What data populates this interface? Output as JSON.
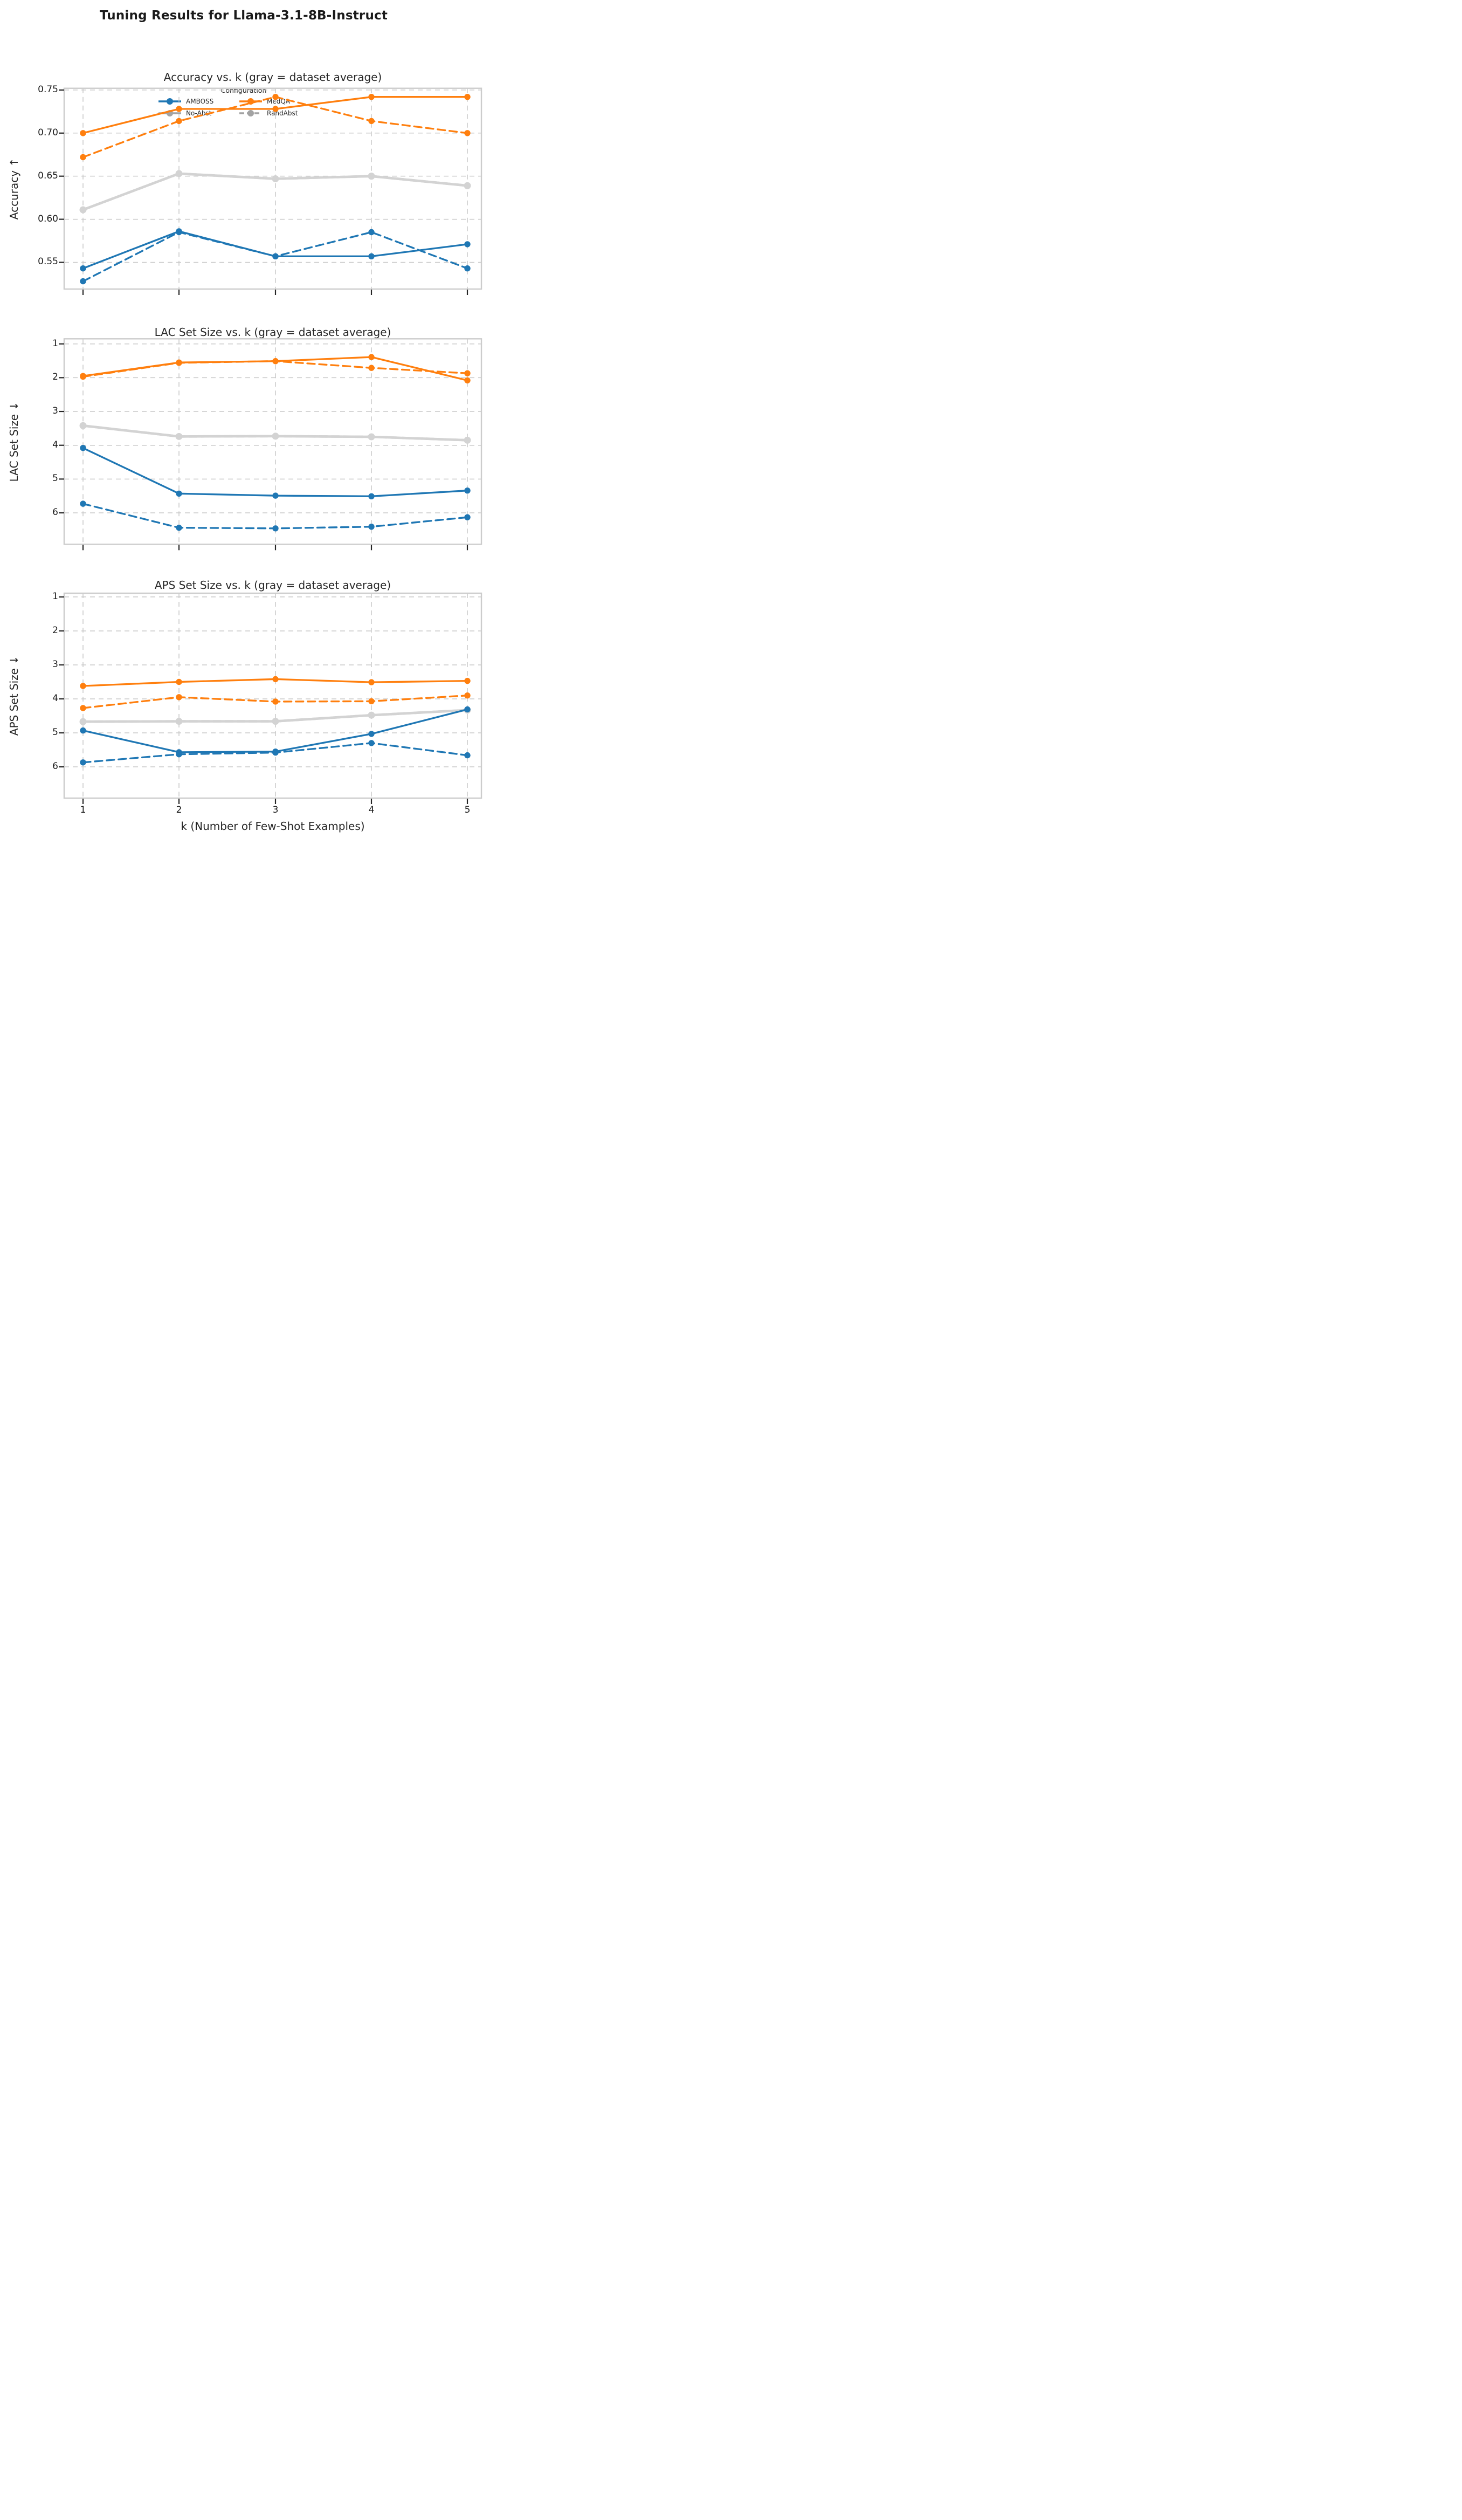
{
  "figure": {
    "title": "Tuning Results for Llama-3.1-8B-Instruct"
  },
  "legend": {
    "title": "Configuration",
    "items": [
      {
        "label": "AMBOSS",
        "color": "amboss",
        "dash": false
      },
      {
        "label": "MedQA",
        "color": "medqa",
        "dash": false
      },
      {
        "label": "No-Abst",
        "color": "legend_gray",
        "dash": false
      },
      {
        "label": "RandAbst",
        "color": "legend_gray",
        "dash": true
      }
    ]
  },
  "colors": {
    "amboss": "#1f77b4",
    "medqa": "#ff7f0e",
    "average": "#d3d3d3",
    "legend_gray": "#a3a3a3",
    "grid": "#c9c9c9",
    "spine": "#cccccc",
    "tick": "#262626"
  },
  "x_axis": {
    "label": "k (Number of Few-Shot Examples)",
    "ticks": [
      "1",
      "2",
      "3",
      "4",
      "5"
    ]
  },
  "chart_data": [
    {
      "type": "line",
      "title": "Accuracy vs. k (gray = dataset average)",
      "ylabel": "Accuracy ↑",
      "x": [
        1,
        2,
        3,
        4,
        5
      ],
      "yticks": [
        0.75,
        0.7,
        0.65,
        0.6,
        0.55
      ],
      "ytick_labels": [
        "0.75",
        "0.70",
        "0.65",
        "0.60",
        "0.55"
      ],
      "ylim": [
        0.752,
        0.519
      ],
      "grid": true,
      "series": [
        {
          "name": "No-Abst (dataset average)",
          "color": "average",
          "style": "solid",
          "values": [
            0.611,
            0.653,
            0.647,
            0.65,
            0.639
          ]
        },
        {
          "name": "RandAbst (dataset average)",
          "color": "average",
          "style": "dashed",
          "values": [
            0.611,
            0.653,
            0.647,
            0.65,
            0.639
          ]
        },
        {
          "name": "AMBOSS No-Abst",
          "color": "amboss",
          "style": "solid",
          "values": [
            0.543,
            0.586,
            0.557,
            0.557,
            0.571
          ]
        },
        {
          "name": "AMBOSS RandAbst",
          "color": "amboss",
          "style": "dashed",
          "values": [
            0.528,
            0.585,
            0.557,
            0.585,
            0.543
          ]
        },
        {
          "name": "MedQA No-Abst",
          "color": "medqa",
          "style": "solid",
          "values": [
            0.7,
            0.728,
            0.728,
            0.742,
            0.742
          ]
        },
        {
          "name": "MedQA RandAbst",
          "color": "medqa",
          "style": "dashed",
          "values": [
            0.672,
            0.714,
            0.742,
            0.714,
            0.7
          ]
        }
      ]
    },
    {
      "type": "line",
      "title": "LAC Set Size vs. k (gray = dataset average)",
      "ylabel": "LAC Set Size ↓",
      "x": [
        1,
        2,
        3,
        4,
        5
      ],
      "yticks": [
        1,
        2,
        3,
        4,
        5,
        6
      ],
      "ytick_labels": [
        "1",
        "2",
        "3",
        "4",
        "5",
        "6"
      ],
      "ylim": [
        0.85,
        6.93
      ],
      "grid": true,
      "series": [
        {
          "name": "No-Abst (dataset average)",
          "color": "average",
          "style": "solid",
          "values": [
            3.42,
            3.74,
            3.73,
            3.75,
            3.85
          ]
        },
        {
          "name": "RandAbst (dataset average)",
          "color": "average",
          "style": "dashed",
          "values": [
            3.42,
            3.74,
            3.73,
            3.75,
            3.85
          ]
        },
        {
          "name": "AMBOSS No-Abst",
          "color": "amboss",
          "style": "solid",
          "values": [
            4.08,
            5.43,
            5.49,
            5.51,
            5.34
          ]
        },
        {
          "name": "AMBOSS RandAbst",
          "color": "amboss",
          "style": "dashed",
          "values": [
            5.73,
            6.44,
            6.46,
            6.41,
            6.13
          ]
        },
        {
          "name": "MedQA No-Abst",
          "color": "medqa",
          "style": "solid",
          "values": [
            1.95,
            1.55,
            1.51,
            1.39,
            2.08
          ]
        },
        {
          "name": "MedQA RandAbst",
          "color": "medqa",
          "style": "dashed",
          "values": [
            1.97,
            1.56,
            1.51,
            1.71,
            1.87
          ]
        }
      ]
    },
    {
      "type": "line",
      "title": "APS Set Size vs. k (gray = dataset average)",
      "ylabel": "APS Set Size ↓",
      "x": [
        1,
        2,
        3,
        4,
        5
      ],
      "yticks": [
        1,
        2,
        3,
        4,
        5,
        6
      ],
      "ytick_labels": [
        "1",
        "2",
        "3",
        "4",
        "5",
        "6"
      ],
      "ylim": [
        0.89,
        6.92
      ],
      "grid": true,
      "series": [
        {
          "name": "No-Abst (dataset average)",
          "color": "average",
          "style": "solid",
          "values": [
            4.67,
            4.66,
            4.66,
            4.48,
            4.33
          ]
        },
        {
          "name": "RandAbst (dataset average)",
          "color": "average",
          "style": "dashed",
          "values": [
            4.67,
            4.66,
            4.66,
            4.48,
            4.33
          ]
        },
        {
          "name": "AMBOSS No-Abst",
          "color": "amboss",
          "style": "solid",
          "values": [
            4.93,
            5.57,
            5.55,
            5.03,
            4.31
          ]
        },
        {
          "name": "AMBOSS RandAbst",
          "color": "amboss",
          "style": "dashed",
          "values": [
            5.87,
            5.63,
            5.58,
            5.3,
            5.66
          ]
        },
        {
          "name": "MedQA No-Abst",
          "color": "medqa",
          "style": "solid",
          "values": [
            3.62,
            3.5,
            3.42,
            3.51,
            3.47
          ]
        },
        {
          "name": "MedQA RandAbst",
          "color": "medqa",
          "style": "dashed",
          "values": [
            4.27,
            3.95,
            4.08,
            4.07,
            3.9
          ]
        }
      ]
    }
  ]
}
